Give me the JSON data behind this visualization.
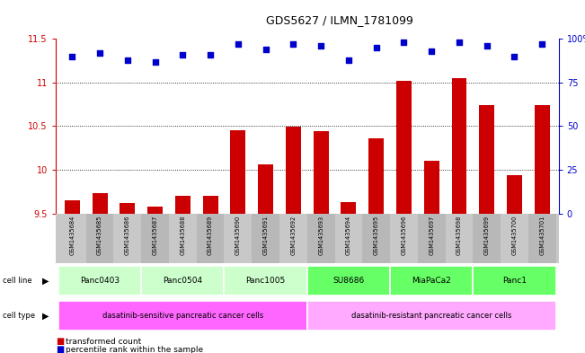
{
  "title": "GDS5627 / ILMN_1781099",
  "samples": [
    "GSM1435684",
    "GSM1435685",
    "GSM1435686",
    "GSM1435687",
    "GSM1435688",
    "GSM1435689",
    "GSM1435690",
    "GSM1435691",
    "GSM1435692",
    "GSM1435693",
    "GSM1435694",
    "GSM1435695",
    "GSM1435696",
    "GSM1435697",
    "GSM1435698",
    "GSM1435699",
    "GSM1435700",
    "GSM1435701"
  ],
  "transformed_count": [
    9.65,
    9.73,
    9.62,
    9.58,
    9.7,
    9.7,
    10.45,
    10.06,
    10.49,
    10.44,
    9.63,
    10.36,
    11.02,
    10.1,
    11.05,
    10.74,
    9.94,
    10.74
  ],
  "percentile_rank": [
    90,
    92,
    88,
    87,
    91,
    91,
    97,
    94,
    97,
    96,
    88,
    95,
    98,
    93,
    98,
    96,
    90,
    97
  ],
  "bar_color": "#cc0000",
  "dot_color": "#0000cc",
  "ylim_left": [
    9.5,
    11.5
  ],
  "ylim_right": [
    0,
    100
  ],
  "yticks_left": [
    9.5,
    10.0,
    10.5,
    11.0,
    11.5
  ],
  "yticks_right": [
    0,
    25,
    50,
    75,
    100
  ],
  "ytick_labels_left": [
    "9.5",
    "10",
    "10.5",
    "11",
    "11.5"
  ],
  "ytick_labels_right": [
    "0",
    "25",
    "50",
    "75",
    "100%"
  ],
  "grid_values": [
    10.0,
    10.5,
    11.0
  ],
  "cell_lines": [
    {
      "label": "Panc0403",
      "start": 0,
      "end": 2,
      "color": "#ccffcc"
    },
    {
      "label": "Panc0504",
      "start": 3,
      "end": 5,
      "color": "#ccffcc"
    },
    {
      "label": "Panc1005",
      "start": 6,
      "end": 8,
      "color": "#ccffcc"
    },
    {
      "label": "SU8686",
      "start": 9,
      "end": 11,
      "color": "#66ff66"
    },
    {
      "label": "MiaPaCa2",
      "start": 12,
      "end": 14,
      "color": "#66ff66"
    },
    {
      "label": "Panc1",
      "start": 15,
      "end": 17,
      "color": "#66ff66"
    }
  ],
  "cell_types": [
    {
      "label": "dasatinib-sensitive pancreatic cancer cells",
      "start": 0,
      "end": 8,
      "color": "#ff66ff"
    },
    {
      "label": "dasatinib-resistant pancreatic cancer cells",
      "start": 9,
      "end": 17,
      "color": "#ffaaff"
    }
  ],
  "legend_bar_label": "transformed count",
  "legend_dot_label": "percentile rank within the sample",
  "bar_tick_color": "#cc0000",
  "dot_tick_color": "#0000cc",
  "bg": "#ffffff",
  "sample_bg_even": "#c8c8c8",
  "sample_bg_odd": "#b8b8b8"
}
